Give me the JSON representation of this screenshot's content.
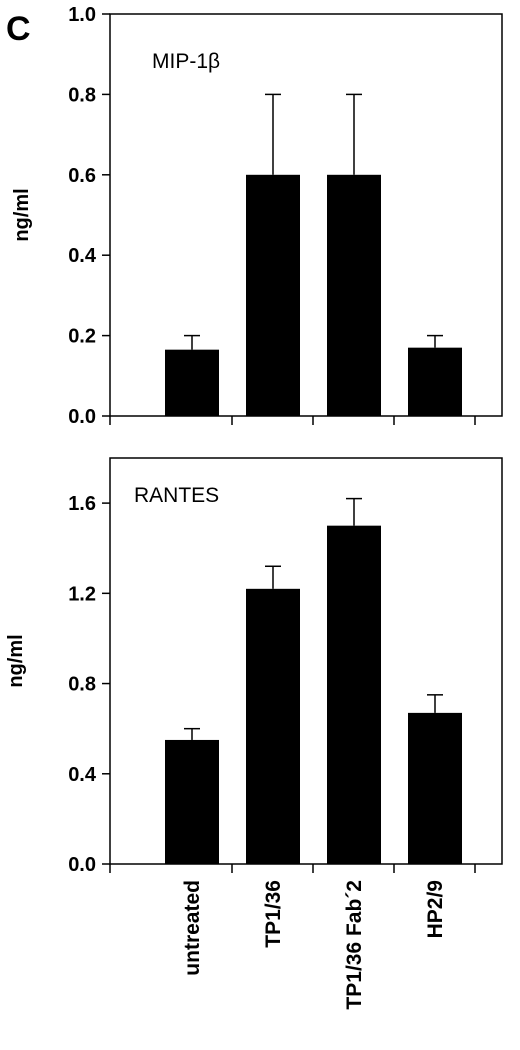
{
  "panel_letter": "C",
  "categories": [
    "untreated",
    "TP1/36",
    "TP1/36 Fab´2",
    "HP2/9"
  ],
  "chart_data": [
    {
      "type": "bar",
      "title": "MIP-1β",
      "ylabel": "ng/ml",
      "ylim": [
        0,
        1.0
      ],
      "yticks": [
        "0.0",
        "0.2",
        "0.4",
        "0.6",
        "0.8",
        "1.0"
      ],
      "categories": [
        "untreated",
        "TP1/36",
        "TP1/36 Fab´2",
        "HP2/9"
      ],
      "values": [
        0.165,
        0.6,
        0.6,
        0.17
      ],
      "error": [
        0.035,
        0.2,
        0.2,
        0.03
      ],
      "grid": false,
      "bar_color": "#000000"
    },
    {
      "type": "bar",
      "title": "RANTES",
      "ylabel": "ng/ml",
      "ylim": [
        0,
        1.8
      ],
      "yticks": [
        "0.0",
        "0.4",
        "0.8",
        "1.2",
        "1.6"
      ],
      "categories": [
        "untreated",
        "TP1/36",
        "TP1/36 Fab´2",
        "HP2/9"
      ],
      "values": [
        0.55,
        1.22,
        1.5,
        0.67
      ],
      "error": [
        0.05,
        0.1,
        0.12,
        0.08
      ],
      "grid": false,
      "bar_color": "#000000"
    }
  ]
}
